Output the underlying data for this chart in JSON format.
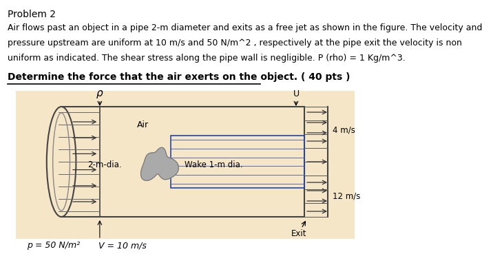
{
  "title": "Problem 2",
  "line1": "Air flows past an object in a pipe 2-m diameter and exits as a free jet as shown in the figure. The velocity and",
  "line2": "pressure upstream are uniform at 10 m/s and 50 N/m^2 , respectively at the pipe exit the velocity is non",
  "line3": "uniform as indicated. The shear stress along the pipe wall is negligible. P (rho) = 1 Kg/m^3.",
  "bold_line": "Determine the force that the air exerts on the object. ( 40 pts )",
  "fig_label_air": "Air",
  "fig_label_2mdia": "2-m-dia.",
  "fig_label_wake": "Wake 1-m dia.",
  "fig_label_4ms": "4 m/s",
  "fig_label_12ms": "12 m/s",
  "fig_label_exit": "Exit",
  "fig_label_p": "p = 50 N/m²",
  "fig_label_v": "V = 10 m/s",
  "fig_label_vp": "ρ",
  "fig_label_u": "U",
  "bg_color": "#f5e6c8",
  "text_color": "#000000"
}
